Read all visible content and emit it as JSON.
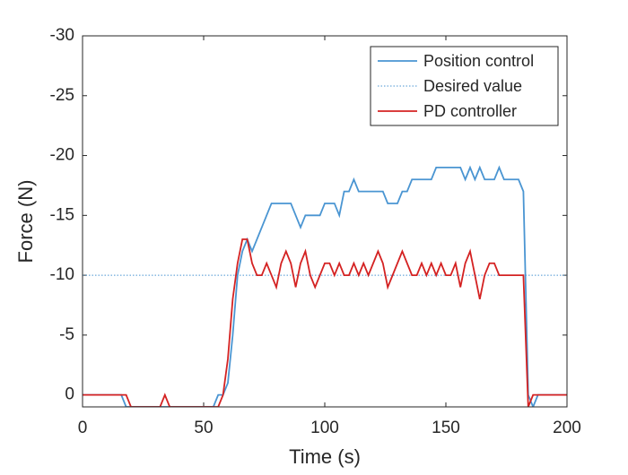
{
  "chart_data": {
    "type": "line",
    "xlabel": "Time (s)",
    "ylabel": "Force (N)",
    "x": [
      0,
      2,
      4,
      6,
      8,
      10,
      12,
      14,
      16,
      18,
      20,
      22,
      24,
      26,
      28,
      30,
      32,
      34,
      36,
      38,
      40,
      42,
      44,
      46,
      48,
      50,
      52,
      54,
      56,
      58,
      60,
      62,
      64,
      66,
      68,
      70,
      72,
      74,
      76,
      78,
      80,
      82,
      84,
      86,
      88,
      90,
      92,
      94,
      96,
      98,
      100,
      102,
      104,
      106,
      108,
      110,
      112,
      114,
      116,
      118,
      120,
      122,
      124,
      126,
      128,
      130,
      132,
      134,
      136,
      138,
      140,
      142,
      144,
      146,
      148,
      150,
      152,
      154,
      156,
      158,
      160,
      162,
      164,
      166,
      168,
      170,
      172,
      174,
      176,
      178,
      180,
      182,
      184,
      186,
      188,
      190,
      192,
      194,
      196,
      198,
      200
    ],
    "series": [
      {
        "name": "Position control",
        "color": "#4a95d2",
        "linestyle": "solid",
        "values": [
          0,
          0,
          0,
          0,
          0,
          0,
          0,
          0,
          0,
          1,
          1,
          1,
          1,
          1,
          1,
          1,
          1,
          1,
          1,
          1,
          1,
          1,
          1,
          1,
          1,
          1,
          1,
          1,
          0,
          0,
          -1,
          -5,
          -10,
          -12,
          -13,
          -12,
          -13,
          -14,
          -15,
          -16,
          -16,
          -16,
          -16,
          -16,
          -15,
          -14,
          -15,
          -15,
          -15,
          -15,
          -16,
          -16,
          -16,
          -15,
          -17,
          -17,
          -18,
          -17,
          -17,
          -17,
          -17,
          -17,
          -17,
          -16,
          -16,
          -16,
          -17,
          -17,
          -18,
          -18,
          -18,
          -18,
          -18,
          -19,
          -19,
          -19,
          -19,
          -19,
          -19,
          -18,
          -19,
          -18,
          -19,
          -18,
          -18,
          -18,
          -19,
          -18,
          -18,
          -18,
          -18,
          -17,
          0,
          1,
          0,
          0,
          0,
          0,
          0,
          0,
          0
        ]
      },
      {
        "name": "Desired value",
        "color": "#4a95d2",
        "linestyle": "dotted",
        "values": [
          -10,
          -10,
          -10,
          -10,
          -10,
          -10,
          -10,
          -10,
          -10,
          -10,
          -10,
          -10,
          -10,
          -10,
          -10,
          -10,
          -10,
          -10,
          -10,
          -10,
          -10,
          -10,
          -10,
          -10,
          -10,
          -10,
          -10,
          -10,
          -10,
          -10,
          -10,
          -10,
          -10,
          -10,
          -10,
          -10,
          -10,
          -10,
          -10,
          -10,
          -10,
          -10,
          -10,
          -10,
          -10,
          -10,
          -10,
          -10,
          -10,
          -10,
          -10,
          -10,
          -10,
          -10,
          -10,
          -10,
          -10,
          -10,
          -10,
          -10,
          -10,
          -10,
          -10,
          -10,
          -10,
          -10,
          -10,
          -10,
          -10,
          -10,
          -10,
          -10,
          -10,
          -10,
          -10,
          -10,
          -10,
          -10,
          -10,
          -10,
          -10,
          -10,
          -10,
          -10,
          -10,
          -10,
          -10,
          -10,
          -10,
          -10,
          -10,
          -10,
          -10,
          -10,
          -10,
          -10,
          -10,
          -10,
          -10,
          -10,
          -10
        ]
      },
      {
        "name": "PD controller",
        "color": "#d42222",
        "linestyle": "solid",
        "values": [
          0,
          0,
          0,
          0,
          0,
          0,
          0,
          0,
          0,
          0,
          1,
          1,
          1,
          1,
          1,
          1,
          1,
          0,
          1,
          1,
          1,
          1,
          1,
          1,
          1,
          1,
          1,
          1,
          1,
          0,
          -3,
          -8,
          -11,
          -13,
          -13,
          -11,
          -10,
          -10,
          -11,
          -10,
          -9,
          -11,
          -12,
          -11,
          -9,
          -11,
          -12,
          -10,
          -9,
          -10,
          -11,
          -11,
          -10,
          -11,
          -10,
          -10,
          -11,
          -10,
          -11,
          -10,
          -11,
          -12,
          -11,
          -9,
          -10,
          -11,
          -12,
          -11,
          -10,
          -10,
          -11,
          -10,
          -11,
          -10,
          -11,
          -10,
          -10,
          -11,
          -9,
          -11,
          -12,
          -10,
          -8,
          -10,
          -11,
          -11,
          -10,
          -10,
          -10,
          -10,
          -10,
          -10,
          1,
          0,
          0,
          0,
          0,
          0,
          0,
          0,
          0
        ]
      }
    ],
    "xlim": [
      0,
      200
    ],
    "xticks": [
      0,
      50,
      100,
      150,
      200
    ],
    "ylim": [
      1,
      -30
    ],
    "yticks": [
      0,
      -5,
      -10,
      -15,
      -20,
      -25,
      -30
    ],
    "legend": "northeast"
  }
}
